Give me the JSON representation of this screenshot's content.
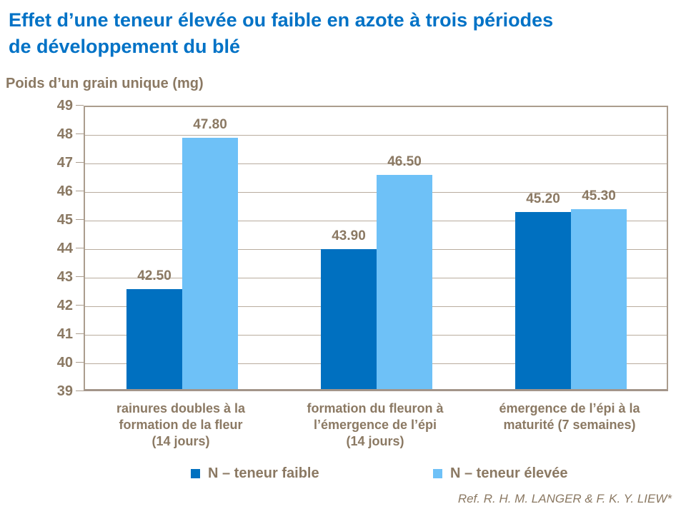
{
  "header": {
    "title_lines": [
      "Effet d’une teneur élevée ou faible en azote à trois périodes",
      "de développement du blé"
    ]
  },
  "chart_data": {
    "type": "bar",
    "title": "Effet d’une teneur élevée ou faible en azote à trois périodes de développement du blé",
    "ylabel": "Poids d’un grain unique (mg)",
    "xlabel": "",
    "categories": [
      "rainures doubles à la formation de la fleur (14 jours)",
      "formation du fleuron à l’émergence de l’épi (14 jours)",
      "émergence de l’épi à la maturité (7 semaines)"
    ],
    "categories_lines": [
      [
        "rainures doubles à la",
        "formation de la fleur",
        "(14 jours)"
      ],
      [
        "formation du fleuron à",
        "l’émergence de l’épi",
        "(14 jours)"
      ],
      [
        "émergence de l’épi à la",
        "maturité (7 semaines)"
      ]
    ],
    "series": [
      {
        "name": "N – teneur faible",
        "color": "#0070C0",
        "values": [
          42.5,
          43.9,
          45.2
        ]
      },
      {
        "name": "N – teneur élevée",
        "color": "#6EC1F7",
        "values": [
          47.8,
          46.5,
          45.3
        ]
      }
    ],
    "ylim": [
      39,
      49
    ],
    "ytick_step": 1,
    "grid": true,
    "legend_position": "bottom",
    "reference": "Ref. R. H. M. LANGER & F. K. Y. LIEW*"
  },
  "colors": {
    "title_blue": "#0072C6",
    "text_brown": "#8B7963",
    "gridline": "#B9AC9E",
    "axis": "#AB9D8E"
  }
}
